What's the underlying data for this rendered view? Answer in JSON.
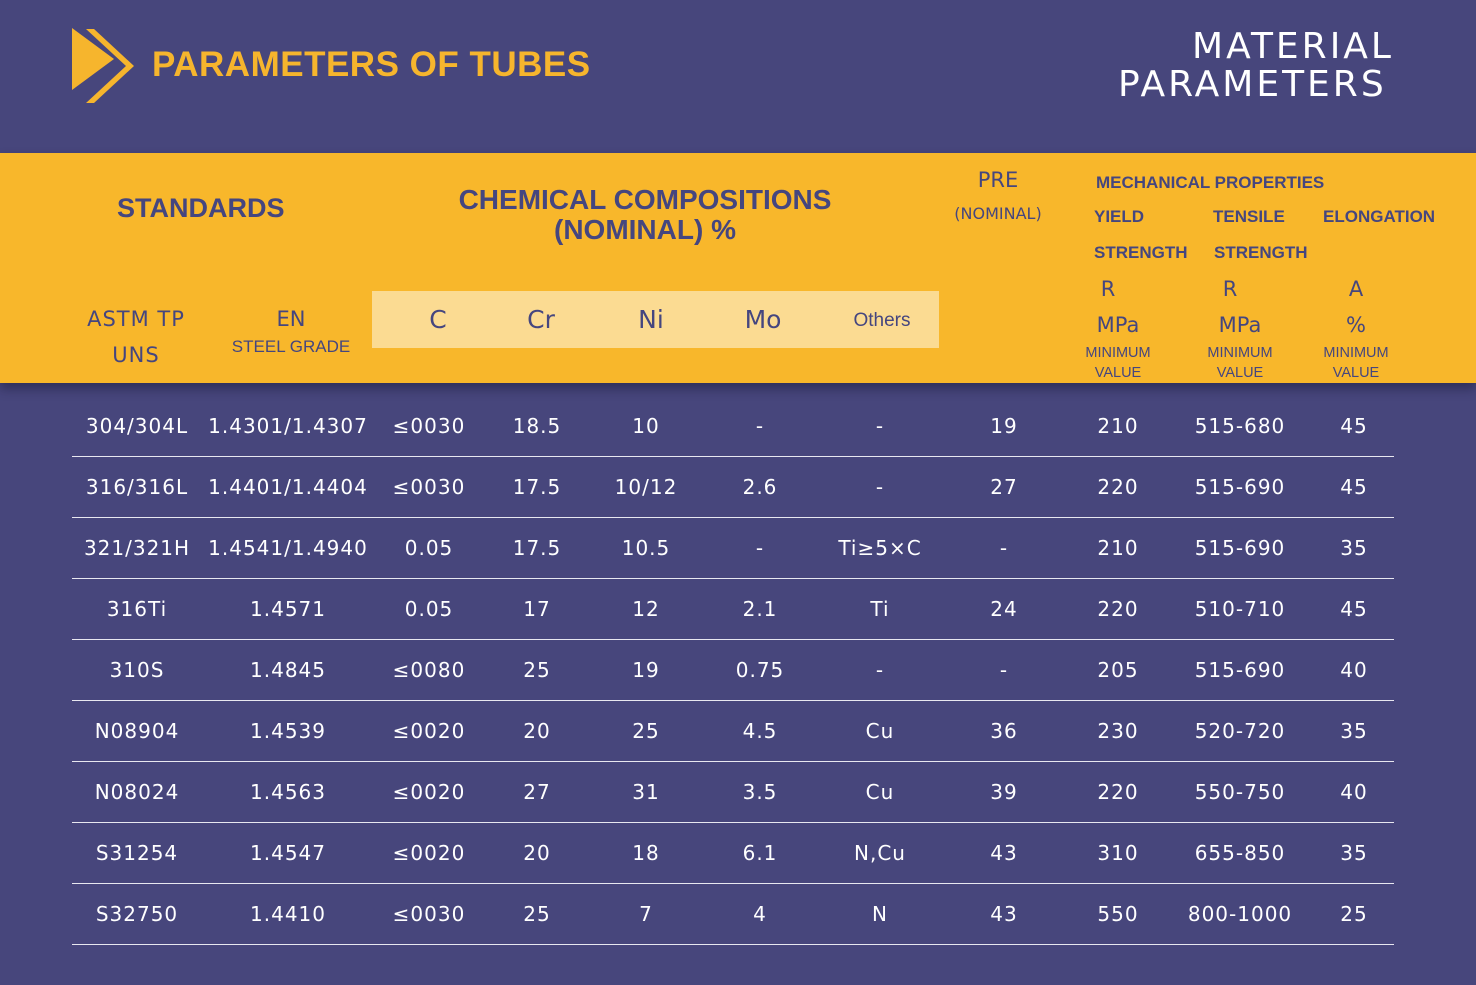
{
  "header": {
    "title": "PARAMETERS OF TUBES",
    "side_title_line1": "MATERIAL",
    "side_title_line2": "PARAMETERS"
  },
  "table_header": {
    "standards": "STANDARDS",
    "chem_line1": "CHEMICAL COMPOSITIONS",
    "chem_line2": "(NOMINAL) %",
    "pre_line1": "PRE",
    "pre_line2": "(NOMINAL)",
    "mechanical": "MECHANICAL PROPERTIES",
    "yield_line1": "YIELD",
    "yield_line2": "STRENGTH",
    "yield_symbol": "R",
    "yield_unit": "MPa",
    "yield_min1": "MINIMUM",
    "yield_min2": "VALUE",
    "tensile_line1": "TENSILE",
    "tensile_line2": "STRENGTH",
    "tensile_symbol": "R",
    "tensile_unit": "MPa",
    "tensile_min1": "MINIMUM",
    "tensile_min2": "VALUE",
    "elong_line1": "ELONGATION",
    "elong_symbol": "A",
    "elong_unit": "%",
    "elong_min1": "MINIMUM",
    "elong_min2": "VALUE",
    "astm_line1": "ASTM TP",
    "astm_line2": "UNS",
    "en_line1": "EN",
    "en_line2": "STEEL GRADE",
    "el_c": "C",
    "el_cr": "Cr",
    "el_ni": "Ni",
    "el_mo": "Mo",
    "el_others": "Others"
  },
  "rows": [
    [
      "304/304L",
      "1.4301/1.4307",
      "≤0030",
      "18.5",
      "10",
      "-",
      "-",
      "19",
      "210",
      "515-680",
      "45"
    ],
    [
      "316/316L",
      "1.4401/1.4404",
      "≤0030",
      "17.5",
      "10/12",
      "2.6",
      "-",
      "27",
      "220",
      "515-690",
      "45"
    ],
    [
      "321/321H",
      "1.4541/1.4940",
      "0.05",
      "17.5",
      "10.5",
      "-",
      "Ti≥5×C",
      "-",
      "210",
      "515-690",
      "35"
    ],
    [
      "316Ti",
      "1.4571",
      "0.05",
      "17",
      "12",
      "2.1",
      "Ti",
      "24",
      "220",
      "510-710",
      "45"
    ],
    [
      "310S",
      "1.4845",
      "≤0080",
      "25",
      "19",
      "0.75",
      "-",
      "-",
      "205",
      "515-690",
      "40"
    ],
    [
      "N08904",
      "1.4539",
      "≤0020",
      "20",
      "25",
      "4.5",
      "Cu",
      "36",
      "230",
      "520-720",
      "35"
    ],
    [
      "N08024",
      "1.4563",
      "≤0020",
      "27",
      "31",
      "3.5",
      "Cu",
      "39",
      "220",
      "550-750",
      "40"
    ],
    [
      "S31254",
      "1.4547",
      "≤0020",
      "20",
      "18",
      "6.1",
      "N,Cu",
      "43",
      "310",
      "655-850",
      "35"
    ],
    [
      "S32750",
      "1.4410",
      "≤0030",
      "25",
      "7",
      "4",
      "N",
      "43",
      "550",
      "800-1000",
      "25"
    ]
  ],
  "colors": {
    "background": "#47467c",
    "accent": "#f8b72b",
    "accent_light": "#fbdb92",
    "header_text": "#45467f"
  }
}
